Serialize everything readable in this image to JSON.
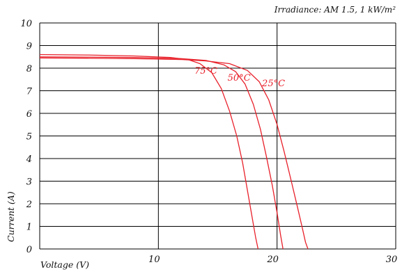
{
  "chart_data": {
    "type": "line",
    "title": "",
    "annotation": "Irradiance: AM 1.5, 1 kW/m²",
    "xlabel": "Voltage (V)",
    "ylabel": "Current (A)",
    "xlim": [
      0,
      30
    ],
    "ylim": [
      0,
      10
    ],
    "x_ticks": [
      "10",
      "20",
      "30"
    ],
    "y_ticks": [
      "0",
      "1",
      "2",
      "3",
      "4",
      "5",
      "6",
      "7",
      "8",
      "9",
      "10"
    ],
    "grid": true,
    "colors": {
      "curve": "#e8202a",
      "grid": "#000000"
    },
    "series": [
      {
        "name": "25°C",
        "x": [
          0,
          4,
          8,
          12,
          14,
          16,
          17.5,
          18.5,
          19.3,
          20,
          20.6,
          21.2,
          21.7,
          22.1,
          22.4,
          22.6
        ],
        "y": [
          8.45,
          8.44,
          8.42,
          8.38,
          8.32,
          8.2,
          7.9,
          7.4,
          6.6,
          5.5,
          4.3,
          3.0,
          1.9,
          1.0,
          0.3,
          0
        ]
      },
      {
        "name": "50°C",
        "x": [
          0,
          4,
          8,
          12,
          14,
          15.5,
          16.5,
          17.3,
          18.0,
          18.6,
          19.1,
          19.6,
          20.0,
          20.3,
          20.5
        ],
        "y": [
          8.5,
          8.49,
          8.47,
          8.42,
          8.34,
          8.15,
          7.85,
          7.3,
          6.4,
          5.3,
          4.1,
          2.8,
          1.6,
          0.6,
          0
        ]
      },
      {
        "name": "75°C",
        "x": [
          0,
          4,
          8,
          11,
          12.5,
          13.5,
          14.5,
          15.3,
          16.0,
          16.6,
          17.1,
          17.5,
          17.9,
          18.2,
          18.4
        ],
        "y": [
          8.6,
          8.58,
          8.54,
          8.47,
          8.38,
          8.2,
          7.8,
          7.1,
          6.1,
          5.0,
          3.8,
          2.6,
          1.4,
          0.5,
          0
        ]
      }
    ]
  }
}
